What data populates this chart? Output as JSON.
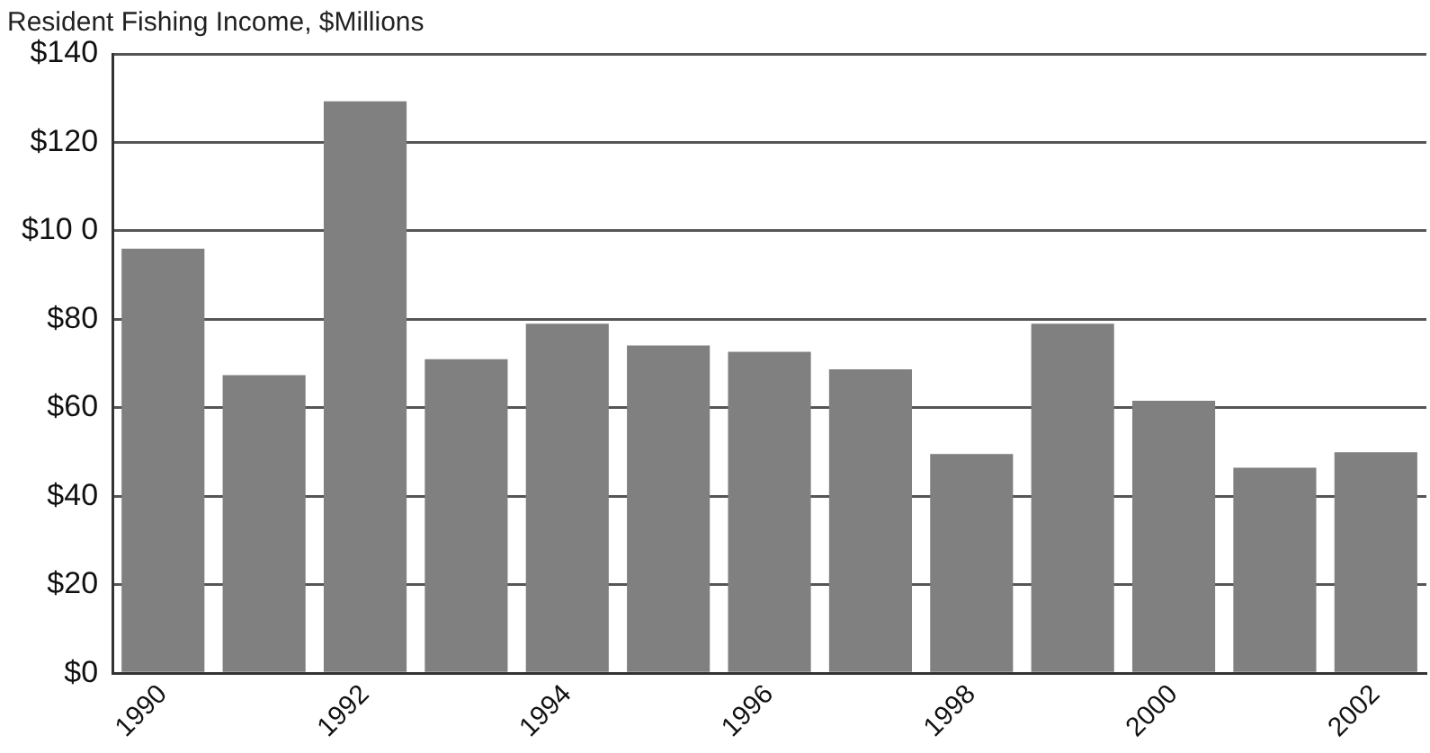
{
  "chart_data": {
    "type": "bar",
    "title": "Resident Fishing Income, $Millions",
    "categories": [
      "1990",
      null,
      "1992",
      null,
      "1994",
      null,
      "1996",
      null,
      "1998",
      null,
      "2000",
      null,
      "2002"
    ],
    "values": [
      96,
      67.4,
      129.3,
      71,
      79,
      74.1,
      72.7,
      68.7,
      49.6,
      79,
      61.6,
      46.5,
      50
    ],
    "color": "#808080",
    "ylim": [
      0,
      140
    ],
    "yticks": [
      {
        "value": 0,
        "label": "$0"
      },
      {
        "value": 20,
        "label": "$20"
      },
      {
        "value": 40,
        "label": "$40"
      },
      {
        "value": 60,
        "label": "$60"
      },
      {
        "value": 80,
        "label": "$80"
      },
      {
        "value": 100,
        "label": "$10 0"
      },
      {
        "value": 120,
        "label": "$120"
      },
      {
        "value": 140,
        "label": "$140"
      }
    ],
    "grid": "y",
    "legend": false
  }
}
